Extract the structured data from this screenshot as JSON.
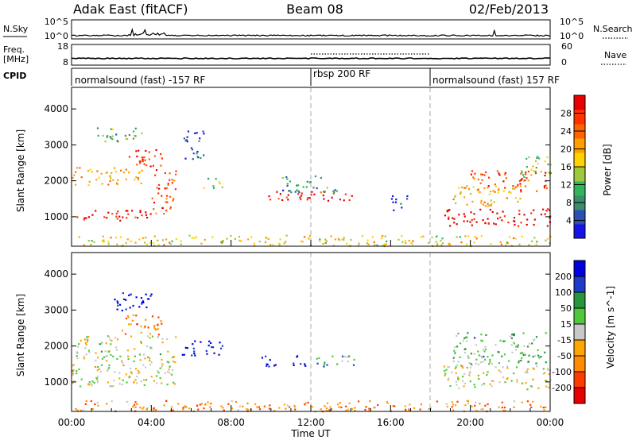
{
  "header": {
    "title": "Adak East (fitACF)",
    "beam": "Beam 08",
    "date": "02/Feb/2013"
  },
  "nsky_panel": {
    "label": "N.Sky",
    "right_label": "N.Search",
    "ticks_left": [
      "10^5",
      "10^0"
    ],
    "ticks_right": [
      "10^5",
      "10^0"
    ]
  },
  "freq_panel": {
    "label_line1": "Freq.",
    "label_line2": "[MHz]",
    "ticks_left": [
      "18",
      "8"
    ],
    "ticks_right": [
      "60",
      "0"
    ],
    "right_label": "Nave"
  },
  "cpid_panel": {
    "label": "CPID",
    "segments": [
      {
        "text": "normalsound (fast) -157 RF",
        "start_hour": 0,
        "end_hour": 12
      },
      {
        "text": "rbsp 200 RF",
        "start_hour": 12,
        "end_hour": 18
      },
      {
        "text": "normalsound (fast) 157 RF",
        "start_hour": 18,
        "end_hour": 24
      }
    ]
  },
  "chart_data": [
    {
      "type": "heatmap",
      "panel": "power",
      "ylabel": "Slant Range [km]",
      "ylim": [
        180,
        4600
      ],
      "yticks": [
        1000,
        2000,
        3000,
        4000
      ],
      "xlim": [
        0,
        24
      ],
      "colorbar_label": "Power [dB]",
      "colorbar_ticks": [
        "4",
        "8",
        "12",
        "16",
        "20",
        "24",
        "28"
      ],
      "colorscale": [
        "#1414e6",
        "#2d4fb4",
        "#3c8c6e",
        "#32b45a",
        "#a0c83c",
        "#ffd200",
        "#ffa000",
        "#ff6400",
        "#ff3200",
        "#e60000"
      ],
      "echo_regions": [
        {
          "t0": 0.0,
          "t1": 4.2,
          "r0": 900,
          "r1": 1200,
          "level": 0.95
        },
        {
          "t0": 0.0,
          "t1": 3.5,
          "r0": 1900,
          "r1": 2400,
          "level": 0.65
        },
        {
          "t0": 2.8,
          "t1": 4.5,
          "r0": 2300,
          "r1": 2900,
          "level": 0.9
        },
        {
          "t0": 4.0,
          "t1": 5.2,
          "r0": 1100,
          "r1": 2300,
          "level": 0.85
        },
        {
          "t0": 1.0,
          "t1": 3.5,
          "r0": 3100,
          "r1": 3500,
          "level": 0.35
        },
        {
          "t0": 5.6,
          "t1": 6.6,
          "r0": 2600,
          "r1": 3500,
          "level": 0.15
        },
        {
          "t0": 6.6,
          "t1": 7.6,
          "r0": 1800,
          "r1": 2100,
          "level": 0.4
        },
        {
          "t0": 9.5,
          "t1": 14.2,
          "r0": 1450,
          "r1": 1720,
          "level": 0.9
        },
        {
          "t0": 10.5,
          "t1": 13.3,
          "r0": 1700,
          "r1": 2150,
          "level": 0.25
        },
        {
          "t0": 15.8,
          "t1": 16.8,
          "r0": 1200,
          "r1": 1600,
          "level": 0.1
        },
        {
          "t0": 18.6,
          "t1": 24.0,
          "r0": 750,
          "r1": 1250,
          "level": 1.0
        },
        {
          "t0": 19.0,
          "t1": 22.5,
          "r0": 1300,
          "r1": 1900,
          "level": 0.6
        },
        {
          "t0": 20.0,
          "t1": 23.8,
          "r0": 1700,
          "r1": 2300,
          "level": 0.85
        },
        {
          "t0": 22.5,
          "t1": 24.0,
          "r0": 2100,
          "r1": 2700,
          "level": 0.45
        },
        {
          "t0": 0.0,
          "t1": 24.0,
          "r0": 200,
          "r1": 500,
          "level": 0.55
        }
      ]
    },
    {
      "type": "heatmap",
      "panel": "velocity",
      "ylabel": "Slant Range [km]",
      "ylim": [
        180,
        4600
      ],
      "yticks": [
        1000,
        2000,
        3000,
        4000
      ],
      "xlim": [
        0,
        24
      ],
      "xlabel": "Time UT",
      "xticks": [
        "00:00",
        "04:00",
        "08:00",
        "12:00",
        "16:00",
        "20:00",
        "00:00"
      ],
      "colorbar_label": "Velocity [m s^-1]",
      "colorbar_ticks": [
        "-200",
        "-100",
        "-50",
        "-15",
        "15",
        "50",
        "100",
        "200"
      ],
      "colorscale": [
        "#e60000",
        "#ff3c00",
        "#ff8c00",
        "#ffa500",
        "#c8c8c8",
        "#50c83c",
        "#28963c",
        "#1e3cc8",
        "#0000dc"
      ],
      "echo_regions": [
        {
          "t0": 0.0,
          "t1": 5.2,
          "r0": 900,
          "r1": 2300,
          "level": 0.5
        },
        {
          "t0": 2.5,
          "t1": 4.5,
          "r0": 2300,
          "r1": 2900,
          "level": 0.25
        },
        {
          "t0": 1.8,
          "t1": 4.0,
          "r0": 3000,
          "r1": 3500,
          "level": 0.95
        },
        {
          "t0": 5.5,
          "t1": 7.6,
          "r0": 1750,
          "r1": 2200,
          "level": 0.95
        },
        {
          "t0": 9.5,
          "t1": 11.8,
          "r0": 1450,
          "r1": 1750,
          "level": 0.95
        },
        {
          "t0": 11.8,
          "t1": 14.2,
          "r0": 1450,
          "r1": 1750,
          "level": 0.7
        },
        {
          "t0": 18.6,
          "t1": 24.0,
          "r0": 800,
          "r1": 1500,
          "level": 0.5
        },
        {
          "t0": 19.0,
          "t1": 23.8,
          "r0": 1500,
          "r1": 2400,
          "level": 0.62
        },
        {
          "t0": 0.0,
          "t1": 24.0,
          "r0": 200,
          "r1": 500,
          "level": 0.3
        }
      ]
    }
  ],
  "colors": {
    "cpid_separator": "#888888",
    "axis": "#000000"
  }
}
